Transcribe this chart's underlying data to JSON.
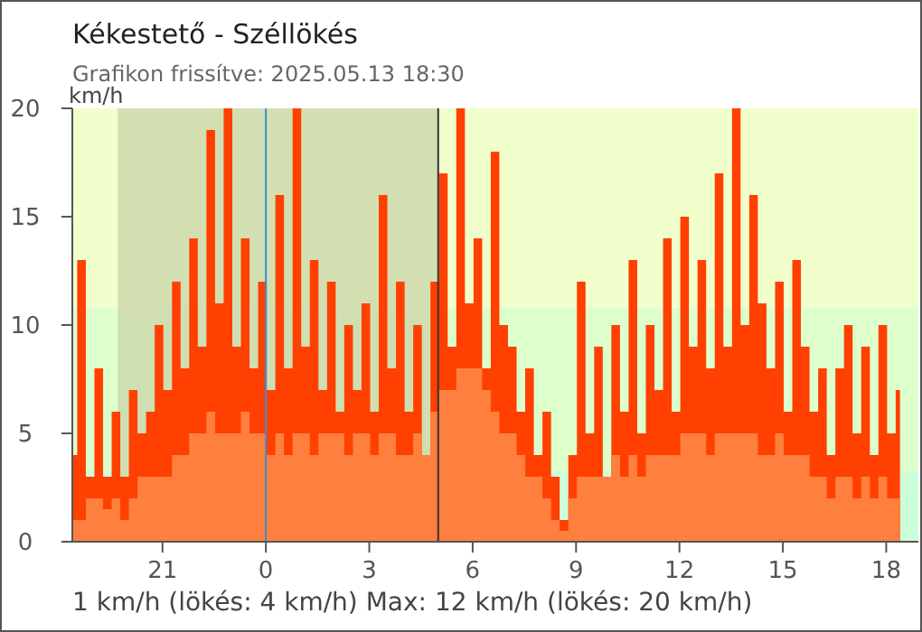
{
  "chart_data": {
    "type": "area",
    "title": "Kékestető - Széllökés",
    "subtitle": "Grafikon frissítve: 2025.05.13 18:30",
    "ylabel": "km/h",
    "annotations": [
      "1 km/h  (lökés: 4 km/h)  Max: 12 km/h (lökés: 20 km/h)"
    ],
    "x": [
      "2025-05-12T18:24",
      "2025-05-12T18:39",
      "2025-05-12T18:54",
      "2025-05-12T19:09",
      "2025-05-12T19:24",
      "2025-05-12T19:39",
      "2025-05-12T19:54",
      "2025-05-12T20:09",
      "2025-05-12T20:24",
      "2025-05-12T20:39",
      "2025-05-12T20:54",
      "2025-05-12T21:09",
      "2025-05-12T21:24",
      "2025-05-12T21:39",
      "2025-05-12T21:54",
      "2025-05-12T22:09",
      "2025-05-12T22:24",
      "2025-05-12T22:39",
      "2025-05-12T22:54",
      "2025-05-12T23:09",
      "2025-05-12T23:24",
      "2025-05-12T23:39",
      "2025-05-12T23:54",
      "2025-05-13T00:09",
      "2025-05-13T00:24",
      "2025-05-13T00:39",
      "2025-05-13T00:54",
      "2025-05-13T01:09",
      "2025-05-13T01:24",
      "2025-05-13T01:39",
      "2025-05-13T01:54",
      "2025-05-13T02:09",
      "2025-05-13T02:24",
      "2025-05-13T02:39",
      "2025-05-13T02:54",
      "2025-05-13T03:09",
      "2025-05-13T03:24",
      "2025-05-13T03:39",
      "2025-05-13T03:54",
      "2025-05-13T04:09",
      "2025-05-13T04:24",
      "2025-05-13T04:39",
      "2025-05-13T04:54",
      "2025-05-13T05:09",
      "2025-05-13T05:24",
      "2025-05-13T05:39",
      "2025-05-13T05:54",
      "2025-05-13T06:09",
      "2025-05-13T06:24",
      "2025-05-13T06:39",
      "2025-05-13T06:54",
      "2025-05-13T07:09",
      "2025-05-13T07:24",
      "2025-05-13T07:39",
      "2025-05-13T07:54",
      "2025-05-13T08:09",
      "2025-05-13T08:24",
      "2025-05-13T08:39",
      "2025-05-13T08:54",
      "2025-05-13T09:09",
      "2025-05-13T09:24",
      "2025-05-13T09:39",
      "2025-05-13T09:54",
      "2025-05-13T10:09",
      "2025-05-13T10:24",
      "2025-05-13T10:39",
      "2025-05-13T10:54",
      "2025-05-13T11:09",
      "2025-05-13T11:24",
      "2025-05-13T11:39",
      "2025-05-13T11:54",
      "2025-05-13T12:09",
      "2025-05-13T12:24",
      "2025-05-13T12:39",
      "2025-05-13T12:54",
      "2025-05-13T13:09",
      "2025-05-13T13:24",
      "2025-05-13T13:39",
      "2025-05-13T13:54",
      "2025-05-13T14:09",
      "2025-05-13T14:24",
      "2025-05-13T14:39",
      "2025-05-13T14:54",
      "2025-05-13T15:09",
      "2025-05-13T15:24",
      "2025-05-13T15:39",
      "2025-05-13T15:54",
      "2025-05-13T16:09",
      "2025-05-13T16:24",
      "2025-05-13T16:39",
      "2025-05-13T16:54",
      "2025-05-13T17:09",
      "2025-05-13T17:24",
      "2025-05-13T17:39",
      "2025-05-13T17:54",
      "2025-05-13T18:09",
      "2025-05-13T18:24"
    ],
    "series": [
      {
        "color": "#ff4000",
        "values": [
          4,
          13,
          3,
          8,
          3,
          6,
          3,
          7,
          5,
          6,
          10,
          7,
          12,
          8,
          14,
          9,
          19,
          11,
          20,
          9,
          14,
          8,
          12,
          7,
          16,
          8,
          20,
          9,
          13,
          7,
          12,
          6,
          10,
          7,
          11,
          6,
          16,
          8,
          12,
          6,
          10,
          4,
          12,
          17,
          9,
          20,
          11,
          14,
          8,
          18,
          10,
          9,
          6,
          8,
          4,
          6,
          3,
          1,
          4,
          12,
          5,
          9,
          3,
          10,
          6,
          13,
          5,
          10,
          7,
          14,
          6,
          15,
          9,
          13,
          8,
          17,
          9,
          20,
          10,
          16,
          11,
          8,
          12,
          6,
          13,
          9,
          6,
          8,
          4,
          8,
          10,
          5,
          9,
          4,
          10,
          5,
          7
        ]
      },
      {
        "color": "#ff7f3f",
        "values": [
          1,
          1,
          2,
          2,
          1.5,
          2,
          1,
          2,
          3,
          3,
          3,
          3,
          4,
          4,
          5,
          5,
          6,
          5,
          5,
          5,
          6,
          5,
          5,
          4,
          5,
          4,
          5,
          5,
          4,
          5,
          5,
          5,
          4,
          5,
          5,
          4,
          5,
          5,
          4,
          4,
          5,
          4,
          6,
          7,
          7,
          8,
          8,
          8,
          7,
          6,
          5,
          5,
          4,
          3,
          3,
          2,
          1,
          0.5,
          2,
          3,
          3,
          3,
          3,
          4,
          3,
          4,
          3,
          4,
          4,
          4,
          4,
          5,
          5,
          5,
          4,
          5,
          5,
          5,
          5,
          5,
          4,
          4,
          5,
          4,
          4,
          4,
          3,
          3,
          2,
          3,
          3,
          2,
          3,
          2,
          3,
          2,
          2
        ]
      }
    ],
    "xlim": [
      "2025-05-12T18:23",
      "2025-05-13T18:56"
    ],
    "xticks": [
      {
        "value": "2025-05-12T21:00",
        "label": "21"
      },
      {
        "value": "2025-05-13T00:00",
        "label": "0"
      },
      {
        "value": "2025-05-13T03:00",
        "label": "3"
      },
      {
        "value": "2025-05-13T06:00",
        "label": "6"
      },
      {
        "value": "2025-05-13T09:00",
        "label": "9"
      },
      {
        "value": "2025-05-13T12:00",
        "label": "12"
      },
      {
        "value": "2025-05-13T15:00",
        "label": "15"
      },
      {
        "value": "2025-05-13T18:00",
        "label": "18"
      }
    ],
    "ylim": [
      0,
      20
    ],
    "yticks": [
      0,
      5,
      10,
      15,
      20
    ],
    "bands": [
      {
        "axis": "y",
        "from": 0,
        "to": 3.2,
        "color": "#ccffd9"
      },
      {
        "axis": "y",
        "from": 3.2,
        "to": 10.8,
        "color": "#ddffcc"
      },
      {
        "axis": "y",
        "from": 10.8,
        "to": 20,
        "color": "#f0ffcc"
      },
      {
        "axis": "x",
        "from": "2025-05-12T19:42",
        "to": "2025-05-13T05:00",
        "color": "#c9d4a8"
      }
    ],
    "ref_lines": [
      {
        "axis": "x",
        "value": "2025-05-13T00:00",
        "color": "#3a8fd0"
      },
      {
        "axis": "x",
        "value": "2025-05-13T05:00",
        "color": "#333333"
      }
    ],
    "grid": false
  }
}
